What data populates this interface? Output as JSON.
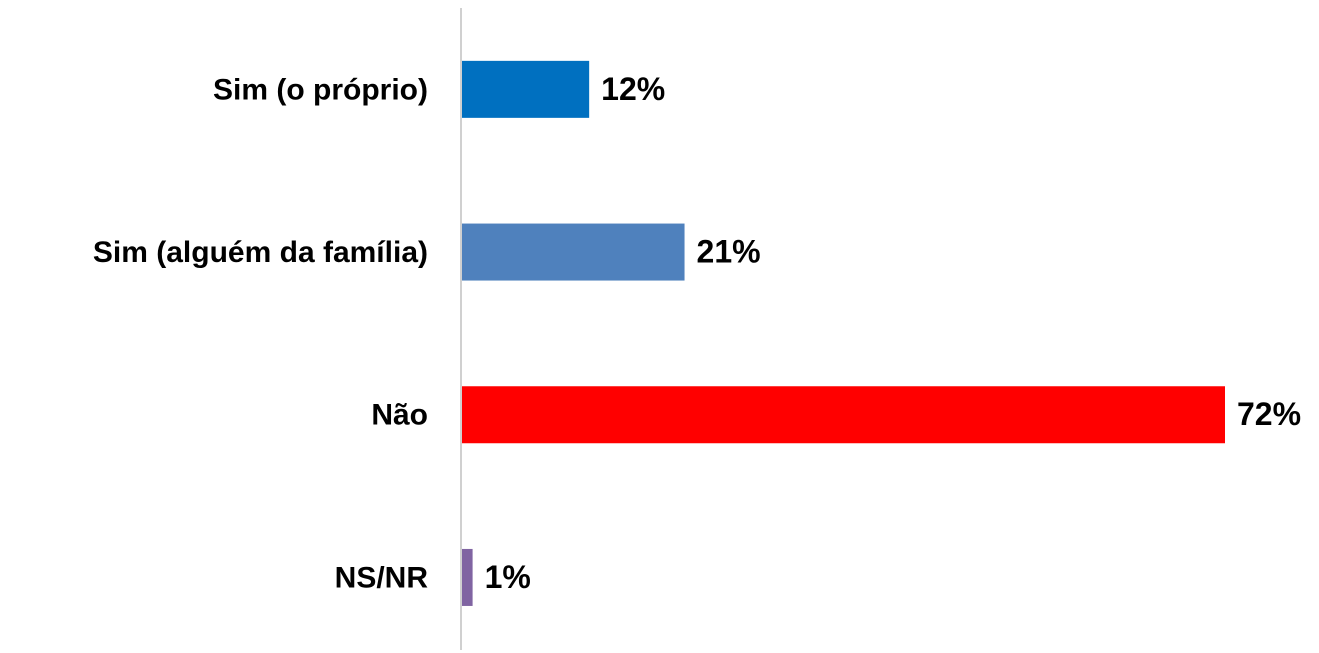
{
  "chart_data": {
    "type": "barh",
    "categories": [
      "Sim (o próprio)",
      "Sim (alguém da família)",
      "Não",
      "NS/NR"
    ],
    "values": [
      12,
      21,
      72,
      1
    ],
    "value_labels": [
      "12%",
      "21%",
      "72%",
      "1%"
    ],
    "colors": [
      "#0070c0",
      "#4f81bd",
      "#ff0000",
      "#8064a2"
    ]
  }
}
